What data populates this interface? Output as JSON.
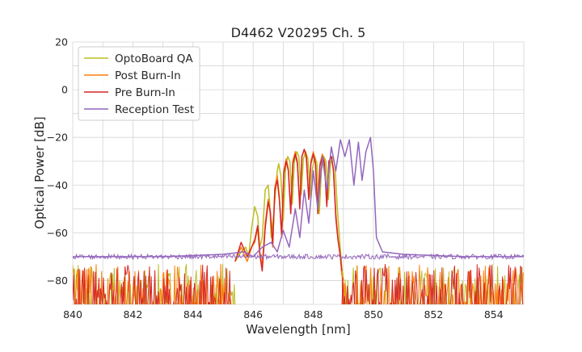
{
  "chart_data": {
    "type": "line",
    "title": "D4462 V20295 Ch. 5",
    "xlabel": "Wavelength [nm]",
    "ylabel": "Optical Power [dB]",
    "xlim": [
      840,
      855
    ],
    "ylim": [
      -90,
      20
    ],
    "xticks": [
      840,
      842,
      844,
      846,
      848,
      850,
      852,
      854
    ],
    "yticks": [
      -80,
      -60,
      -40,
      -20,
      0,
      20
    ],
    "grid": true,
    "legend_position": "top-left",
    "series": [
      {
        "name": "OptoBoard QA",
        "color": "#bcbd22",
        "noise_floor": {
          "x_ranges": [
            [
              840.0,
              845.4
            ],
            [
              849.0,
              855.0
            ]
          ],
          "low": -90,
          "high": -73
        },
        "x": [
          845.4,
          845.6,
          845.75,
          845.85,
          845.95,
          846.05,
          846.15,
          846.22,
          846.3,
          846.4,
          846.5,
          846.55,
          846.6,
          846.7,
          846.8,
          846.85,
          846.92,
          847.0,
          847.08,
          847.15,
          847.22,
          847.3,
          847.37,
          847.45,
          847.52,
          847.6,
          847.67,
          847.75,
          847.82,
          847.9,
          847.97,
          848.05,
          848.12,
          848.2,
          848.27,
          848.35,
          848.42,
          848.5,
          848.57,
          848.65,
          848.72,
          848.8,
          848.87,
          848.95,
          849.0
        ],
        "y": [
          -72,
          -68,
          -66,
          -70,
          -58,
          -49,
          -53,
          -66,
          -62,
          -42,
          -40,
          -48,
          -62,
          -50,
          -34,
          -31,
          -36,
          -55,
          -32,
          -28,
          -30,
          -48,
          -30,
          -26,
          -28,
          -44,
          -29,
          -26,
          -29,
          -45,
          -33,
          -28,
          -31,
          -52,
          -34,
          -28,
          -30,
          -46,
          -31,
          -28,
          -32,
          -50,
          -62,
          -75,
          -80
        ]
      },
      {
        "name": "Post Burn-In",
        "color": "#ff7f0e",
        "noise_floor": {
          "x_ranges": [
            [
              840.0,
              845.4
            ],
            [
              848.95,
              855.0
            ]
          ],
          "low": -90,
          "high": -73
        },
        "x": [
          845.4,
          845.6,
          845.8,
          845.95,
          846.05,
          846.15,
          846.22,
          846.3,
          846.4,
          846.5,
          846.57,
          846.65,
          846.72,
          846.8,
          846.87,
          846.95,
          847.02,
          847.1,
          847.17,
          847.25,
          847.32,
          847.4,
          847.47,
          847.55,
          847.62,
          847.7,
          847.77,
          847.85,
          847.92,
          848.0,
          848.07,
          848.15,
          848.22,
          848.3,
          848.37,
          848.45,
          848.52,
          848.6,
          848.67,
          848.75,
          848.82,
          848.9,
          848.95
        ],
        "y": [
          -72,
          -66,
          -72,
          -66,
          -64,
          -58,
          -68,
          -74,
          -56,
          -46,
          -52,
          -66,
          -41,
          -36,
          -45,
          -62,
          -34,
          -29,
          -33,
          -50,
          -30,
          -26,
          -30,
          -48,
          -28,
          -25,
          -29,
          -46,
          -30,
          -26,
          -30,
          -50,
          -31,
          -27,
          -30,
          -48,
          -30,
          -28,
          -33,
          -52,
          -62,
          -70,
          -78
        ]
      },
      {
        "name": "Pre Burn-In",
        "color": "#d62728",
        "noise_floor": {
          "x_ranges": [
            [
              840.0,
              845.4
            ],
            [
              848.95,
              855.0
            ]
          ],
          "low": -90,
          "high": -73
        },
        "x": [
          845.4,
          845.6,
          845.8,
          845.95,
          846.05,
          846.15,
          846.22,
          846.3,
          846.4,
          846.5,
          846.57,
          846.65,
          846.72,
          846.8,
          846.87,
          846.95,
          847.02,
          847.1,
          847.17,
          847.25,
          847.32,
          847.4,
          847.47,
          847.55,
          847.62,
          847.7,
          847.77,
          847.85,
          847.92,
          848.0,
          848.07,
          848.15,
          848.22,
          848.3,
          848.37,
          848.45,
          848.52,
          848.6,
          848.67,
          848.75,
          848.82,
          848.9,
          848.95
        ],
        "y": [
          -72,
          -64,
          -70,
          -66,
          -63,
          -57,
          -69,
          -76,
          -58,
          -47,
          -51,
          -65,
          -42,
          -38,
          -46,
          -61,
          -35,
          -30,
          -34,
          -52,
          -31,
          -27,
          -31,
          -50,
          -28,
          -25,
          -28,
          -46,
          -31,
          -27,
          -31,
          -52,
          -32,
          -28,
          -31,
          -49,
          -30,
          -28,
          -34,
          -54,
          -63,
          -70,
          -76
        ]
      },
      {
        "name": "Reception Test",
        "color": "#9467bd",
        "noise_floor": {
          "x_ranges": [
            [
              840.0,
              855.0
            ]
          ],
          "low": -71,
          "high": -69
        },
        "x": [
          840.0,
          843.0,
          845.0,
          845.7,
          846.0,
          846.3,
          846.6,
          846.8,
          847.0,
          847.2,
          847.4,
          847.55,
          847.7,
          847.85,
          848.0,
          848.15,
          848.3,
          848.45,
          848.6,
          848.75,
          848.9,
          849.05,
          849.2,
          849.35,
          849.5,
          849.62,
          849.75,
          849.9,
          850.0,
          850.1,
          850.3,
          851.0,
          853.0,
          855.0
        ],
        "y": [
          -70,
          -70,
          -69,
          -68,
          -70,
          -66,
          -64,
          -68,
          -59,
          -66,
          -50,
          -62,
          -42,
          -56,
          -34,
          -50,
          -28,
          -42,
          -24,
          -34,
          -21,
          -28,
          -21,
          -40,
          -22,
          -38,
          -26,
          -20,
          -34,
          -62,
          -68,
          -69,
          -70,
          -70
        ]
      }
    ]
  }
}
